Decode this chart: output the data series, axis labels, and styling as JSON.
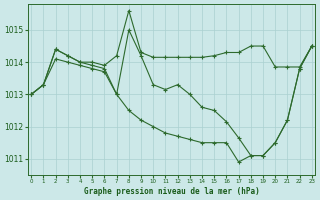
{
  "title": "Graphe pression niveau de la mer (hPa)",
  "hours": [
    0,
    1,
    2,
    3,
    4,
    5,
    6,
    7,
    8,
    9,
    10,
    11,
    12,
    13,
    14,
    15,
    16,
    17,
    18,
    19,
    20,
    21,
    22,
    23
  ],
  "series1": [
    1013.0,
    1013.3,
    1014.4,
    1014.2,
    1014.0,
    1014.0,
    1013.9,
    1014.2,
    1015.6,
    1014.3,
    1014.15,
    1014.15,
    1014.15,
    1014.15,
    1014.15,
    1014.2,
    1014.3,
    1014.3,
    1014.5,
    1014.5,
    1013.85,
    1013.85,
    1013.85,
    1014.5
  ],
  "series2": [
    1013.0,
    1013.3,
    1014.4,
    1014.2,
    1014.0,
    1013.9,
    1013.8,
    1013.0,
    1015.0,
    1014.2,
    1013.3,
    1013.15,
    1013.3,
    1013.0,
    1012.6,
    1012.5,
    1012.15,
    1011.65,
    1011.1,
    1011.1,
    1011.5,
    1012.2,
    1013.8,
    1014.5
  ],
  "series3": [
    1013.0,
    1013.3,
    1014.1,
    1014.0,
    1013.9,
    1013.8,
    1013.7,
    1013.0,
    1012.5,
    1012.2,
    1012.0,
    1011.8,
    1011.7,
    1011.6,
    1011.5,
    1011.5,
    1011.5,
    1010.9,
    1011.1,
    1011.1,
    1011.5,
    1012.2,
    1013.8,
    1014.5
  ],
  "line_color": "#2d6a2d",
  "bg_color": "#cce8e8",
  "grid_color": "#aad0d0",
  "text_color": "#1a5c1a",
  "ylim": [
    1010.5,
    1015.8
  ],
  "yticks": [
    1011,
    1012,
    1013,
    1014,
    1015
  ],
  "figwidth": 3.2,
  "figheight": 2.0,
  "dpi": 100
}
